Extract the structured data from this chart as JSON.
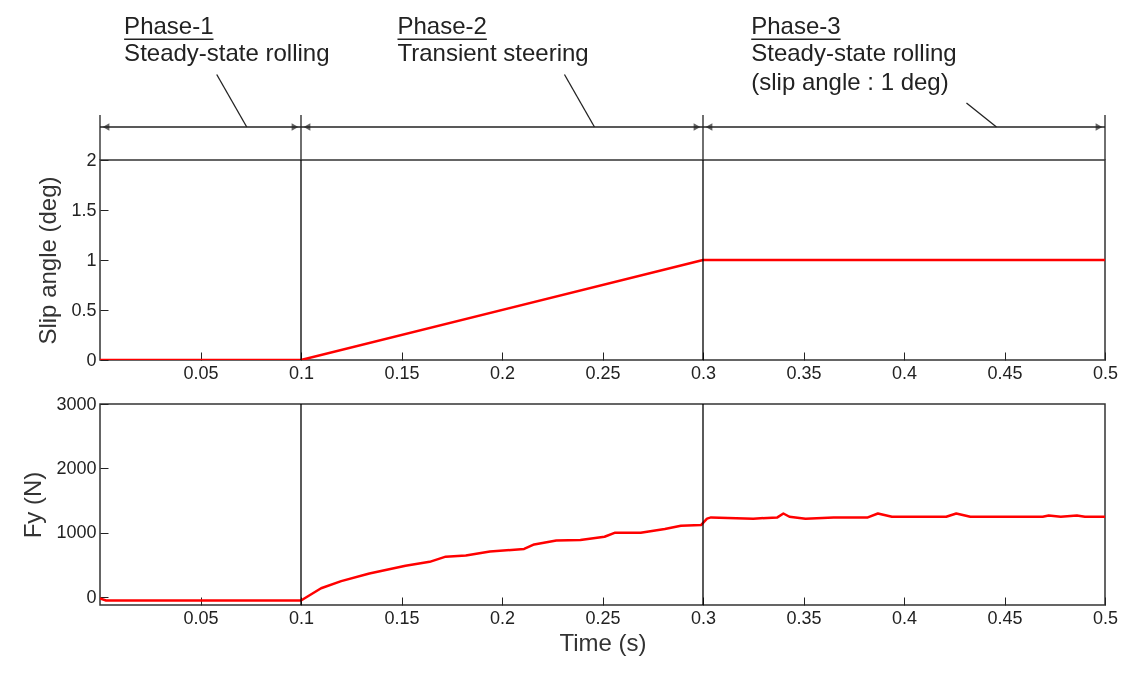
{
  "chart_data": [
    {
      "type": "line",
      "annotations": [
        "Phase-1",
        "Steady-state rolling",
        "Phase-2",
        "Transient steering",
        "Phase-3",
        "Steady-state rolling\n(slip angle : 1 deg)"
      ],
      "ylabel": "Slip angle (deg)",
      "xlim": [
        0,
        0.5
      ],
      "xticks": [
        0.05,
        0.1,
        0.15,
        0.2,
        0.25,
        0.3,
        0.35,
        0.4,
        0.45,
        0.5
      ],
      "ylim": [
        0,
        2
      ],
      "yticks": [
        0,
        0.5,
        1,
        1.5,
        2
      ],
      "grid": false,
      "series": [
        {
          "color": "#ff0000",
          "x": [
            0,
            0.1,
            0.3,
            0.5
          ],
          "values": [
            0,
            0,
            1,
            1
          ]
        }
      ],
      "ref_lines": [
        {
          "axis": "x",
          "value": 0.1,
          "color": "#000000"
        },
        {
          "axis": "x",
          "value": 0.3,
          "color": "#000000"
        }
      ]
    },
    {
      "type": "line",
      "xlabel": "Time (s)",
      "ylabel": "Fy (N)",
      "xlim": [
        0,
        0.5
      ],
      "xticks": [
        0.05,
        0.1,
        0.15,
        0.2,
        0.25,
        0.3,
        0.35,
        0.4,
        0.45,
        0.5
      ],
      "ylim": [
        -120,
        3000
      ],
      "yticks": [
        0,
        1000,
        2000,
        3000
      ],
      "grid": false,
      "series": [
        {
          "color": "#ff0000",
          "x": [
            0,
            0.003,
            0.1,
            0.11,
            0.12,
            0.134,
            0.152,
            0.164,
            0.172,
            0.182,
            0.194,
            0.211,
            0.216,
            0.227,
            0.239,
            0.251,
            0.256,
            0.269,
            0.281,
            0.289,
            0.299,
            0.302,
            0.304,
            0.325,
            0.337,
            0.34,
            0.343,
            0.351,
            0.365,
            0.382,
            0.387,
            0.394,
            0.421,
            0.426,
            0.433,
            0.469,
            0.472,
            0.478,
            0.486,
            0.49,
            0.5
          ],
          "values": [
            -20,
            -50,
            -50,
            140,
            250,
            370,
            490,
            550,
            630,
            650,
            710,
            750,
            820,
            880,
            890,
            940,
            1000,
            1000,
            1060,
            1110,
            1120,
            1220,
            1240,
            1220,
            1240,
            1300,
            1250,
            1220,
            1240,
            1240,
            1300,
            1250,
            1250,
            1300,
            1250,
            1250,
            1270,
            1250,
            1270,
            1250,
            1250
          ]
        }
      ],
      "ref_lines": [
        {
          "axis": "x",
          "value": 0.1,
          "color": "#000000"
        },
        {
          "axis": "x",
          "value": 0.3,
          "color": "#000000"
        }
      ]
    }
  ]
}
